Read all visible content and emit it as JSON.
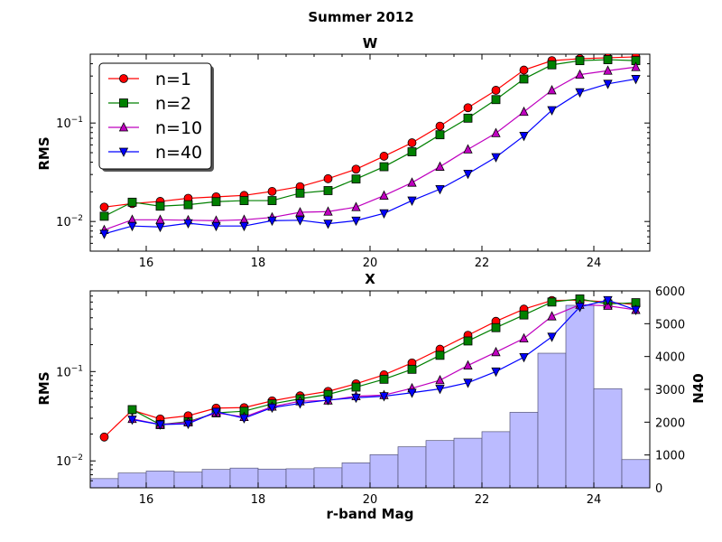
{
  "figure": {
    "suptitle": "Summer 2012",
    "xlabel": "r-band Mag"
  },
  "legend": {
    "entries": [
      "n=1",
      "n=2",
      "n=10",
      "n=40"
    ],
    "placement": "top-left"
  },
  "series_style": [
    {
      "name": "n=1",
      "color": "#ff0000",
      "marker": "circle"
    },
    {
      "name": "n=2",
      "color": "#008000",
      "marker": "square"
    },
    {
      "name": "n=10",
      "color": "#bf00bf",
      "marker": "triangle-up"
    },
    {
      "name": "n=40",
      "color": "#0000ff",
      "marker": "triangle-down"
    }
  ],
  "hist_color": "#bbbbff",
  "chart_data": [
    {
      "type": "line",
      "title": "W",
      "xlabel": "",
      "ylabel": "RMS",
      "xlim": [
        15,
        25
      ],
      "ylim": [
        0.005,
        0.5
      ],
      "yscale": "log",
      "x_ticks": [
        16,
        18,
        20,
        22,
        24
      ],
      "y_ticks": [
        0.01,
        0.1
      ],
      "x": [
        15.25,
        15.75,
        16.25,
        16.75,
        17.25,
        17.75,
        18.25,
        18.75,
        19.25,
        19.75,
        20.25,
        20.75,
        21.25,
        21.75,
        22.25,
        22.75,
        23.25,
        23.75,
        24.25,
        24.75
      ],
      "series": [
        {
          "name": "n=1",
          "values": [
            0.014,
            0.0152,
            0.016,
            0.0172,
            0.0178,
            0.0184,
            0.0202,
            0.0226,
            0.0272,
            0.034,
            0.046,
            0.063,
            0.093,
            0.143,
            0.215,
            0.345,
            0.43,
            0.45,
            0.46,
            0.47
          ]
        },
        {
          "name": "n=2",
          "values": [
            0.0113,
            0.0157,
            0.0143,
            0.0148,
            0.0159,
            0.0163,
            0.0163,
            0.0194,
            0.0206,
            0.027,
            0.036,
            0.051,
            0.076,
            0.112,
            0.173,
            0.28,
            0.39,
            0.43,
            0.44,
            0.43
          ]
        },
        {
          "name": "n=10",
          "values": [
            0.0082,
            0.0104,
            0.0104,
            0.0103,
            0.0102,
            0.0104,
            0.011,
            0.0124,
            0.0126,
            0.014,
            0.0183,
            0.0248,
            0.036,
            0.054,
            0.079,
            0.13,
            0.215,
            0.31,
            0.34,
            0.37
          ]
        },
        {
          "name": "n=40",
          "values": [
            0.0075,
            0.009,
            0.0088,
            0.0096,
            0.009,
            0.009,
            0.0102,
            0.0103,
            0.0095,
            0.0102,
            0.0121,
            0.0163,
            0.0213,
            0.0305,
            0.045,
            0.074,
            0.135,
            0.205,
            0.25,
            0.28
          ]
        }
      ]
    },
    {
      "type": "line",
      "title": "X",
      "xlabel": "r-band Mag",
      "ylabel": "RMS",
      "y2label": "N40",
      "xlim": [
        15,
        25
      ],
      "ylim": [
        0.005,
        0.8
      ],
      "yscale": "log",
      "y2lim": [
        0,
        6000
      ],
      "x_ticks": [
        16,
        18,
        20,
        22,
        24
      ],
      "y_ticks": [
        0.01,
        0.1
      ],
      "y2_ticks": [
        0,
        1000,
        2000,
        3000,
        4000,
        5000,
        6000
      ],
      "x": [
        15.25,
        15.75,
        16.25,
        16.75,
        17.25,
        17.75,
        18.25,
        18.75,
        19.25,
        19.75,
        20.25,
        20.75,
        21.25,
        21.75,
        22.25,
        22.75,
        23.25,
        23.75,
        24.25,
        24.75
      ],
      "series": [
        {
          "name": "n=1",
          "values": [
            0.0185,
            0.037,
            0.0295,
            0.032,
            0.039,
            0.0395,
            0.047,
            0.0535,
            0.06,
            0.073,
            0.092,
            0.125,
            0.178,
            0.255,
            0.365,
            0.5,
            0.625,
            0.63,
            0.6,
            0.56
          ]
        },
        {
          "name": "n=2",
          "values": [
            null,
            0.0375,
            0.0255,
            0.0275,
            0.0345,
            0.036,
            0.0435,
            0.0495,
            0.0555,
            0.067,
            0.082,
            0.106,
            0.152,
            0.22,
            0.31,
            0.43,
            0.6,
            0.65,
            0.57,
            0.59
          ]
        },
        {
          "name": "n=10",
          "values": [
            null,
            0.0295,
            0.0255,
            0.027,
            0.0345,
            0.031,
            0.0405,
            0.0465,
            0.0475,
            0.053,
            0.0545,
            0.065,
            0.08,
            0.117,
            0.165,
            0.235,
            0.415,
            0.56,
            0.545,
            0.49
          ]
        },
        {
          "name": "n=40",
          "values": [
            null,
            0.029,
            0.0255,
            0.026,
            0.0355,
            0.03,
            0.0395,
            0.044,
            0.048,
            0.051,
            0.053,
            0.058,
            0.064,
            0.075,
            0.1,
            0.145,
            0.245,
            0.53,
            0.63,
            0.49
          ]
        }
      ],
      "histogram": {
        "name": "N40",
        "bin_edges": [
          15,
          15.5,
          16,
          16.5,
          17,
          17.5,
          18,
          18.5,
          19,
          19.5,
          20,
          20.5,
          21,
          21.5,
          22,
          22.5,
          23,
          23.5,
          24,
          24.5,
          25
        ],
        "values": [
          280,
          450,
          510,
          480,
          560,
          600,
          570,
          580,
          610,
          760,
          1010,
          1250,
          1440,
          1510,
          1710,
          2300,
          4100,
          5560,
          3020,
          860
        ]
      }
    }
  ]
}
